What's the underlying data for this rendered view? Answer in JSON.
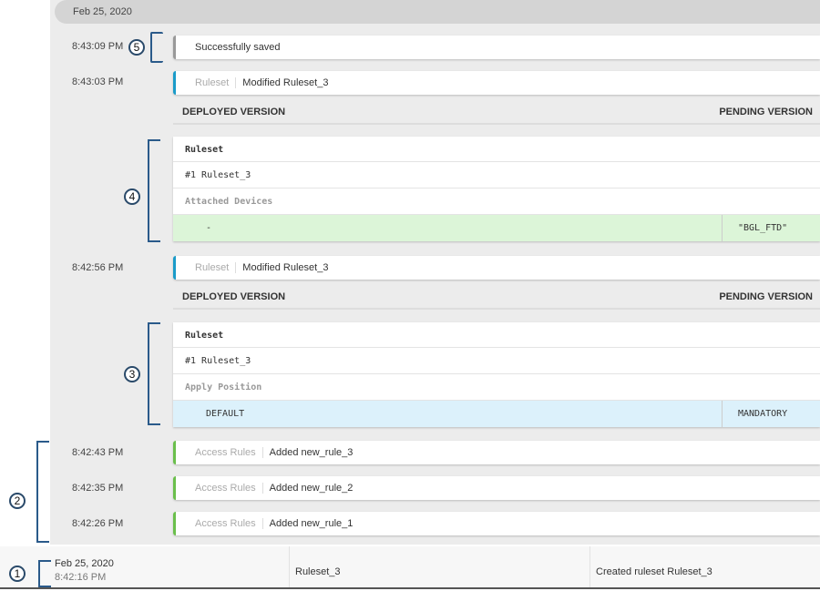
{
  "date_header": "Feb 25, 2020",
  "entries": [
    {
      "time": "8:43:09 PM",
      "message": "Successfully saved"
    },
    {
      "time": "8:43:03 PM",
      "category": "Ruleset",
      "message": "Modified Ruleset_3",
      "diff": {
        "deployed_label": "DEPLOYED VERSION",
        "pending_label": "PENDING VERSION",
        "object": "Ruleset",
        "name": "#1 Ruleset_3",
        "field": "Attached Devices",
        "deployed": "-",
        "pending": "\"BGL_FTD\"",
        "change_color": "#dcf5d8"
      }
    },
    {
      "time": "8:42:56 PM",
      "category": "Ruleset",
      "message": "Modified Ruleset_3",
      "diff": {
        "deployed_label": "DEPLOYED VERSION",
        "pending_label": "PENDING VERSION",
        "object": "Ruleset",
        "name": "#1 Ruleset_3",
        "field": "Apply Position",
        "deployed": "DEFAULT",
        "pending": "MANDATORY",
        "change_color": "#dcf1fb"
      }
    },
    {
      "time": "8:42:43 PM",
      "category": "Access Rules",
      "message": "Added new_rule_3"
    },
    {
      "time": "8:42:35 PM",
      "category": "Access Rules",
      "message": "Added new_rule_2"
    },
    {
      "time": "8:42:26 PM",
      "category": "Access Rules",
      "message": "Added new_rule_1"
    }
  ],
  "bottom_row": {
    "date": "Feb 25, 2020",
    "time": "8:42:16 PM",
    "object": "Ruleset_3",
    "description": "Created ruleset Ruleset_3"
  },
  "callouts": [
    "1",
    "2",
    "3",
    "4",
    "5"
  ],
  "colors": {
    "ruleset_accent": "#1a9bc9",
    "access_rules_accent": "#6abf4b",
    "saved_accent": "#999999",
    "callout": "#2a5a8a"
  }
}
